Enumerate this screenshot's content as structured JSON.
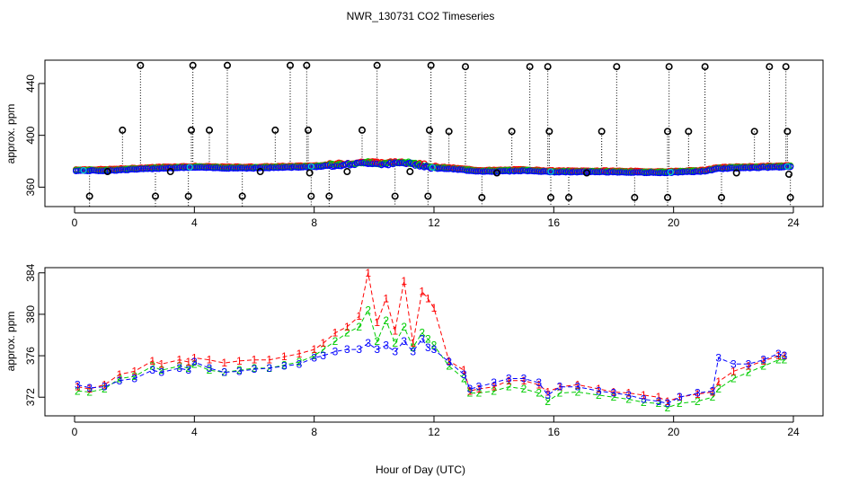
{
  "title": "NWR_130731  CO2 Timeseries",
  "xlabel": "Hour of Day (UTC)",
  "colors": {
    "series1": "#ff0000",
    "series2": "#00cc00",
    "series3": "#0000ff",
    "flag": "#00cccc",
    "outlier": "#000000"
  },
  "chart_data": [
    {
      "type": "scatter",
      "panel": "top",
      "ylabel": "approx. ppm",
      "xlim": [
        0,
        24
      ],
      "ylim": [
        345,
        458
      ],
      "x_ticks": [
        "0",
        "4",
        "8",
        "12",
        "16",
        "20",
        "24"
      ],
      "y_ticks": [
        "360",
        "400",
        "440"
      ],
      "baseline": {
        "x": [
          0,
          1,
          2,
          3,
          4,
          5,
          6,
          7,
          8,
          8.6,
          9.2,
          9.8,
          10.4,
          11,
          11.6,
          12,
          12.5,
          13,
          13.5,
          14,
          15,
          16,
          17,
          18,
          19,
          19.8,
          20.3,
          21,
          21.5,
          22,
          23,
          23.8
        ],
        "y": [
          373,
          373,
          374,
          375,
          375.5,
          375,
          375,
          375.5,
          376,
          377,
          378,
          379,
          378,
          379,
          377,
          375,
          374.5,
          373.5,
          372.5,
          372.5,
          373,
          372,
          372,
          372,
          371.5,
          371.5,
          372,
          372.5,
          374.5,
          375,
          375.5,
          376
        ]
      },
      "outliers_high": [
        {
          "x": 1.6,
          "y": 404
        },
        {
          "x": 2.2,
          "y": 454
        },
        {
          "x": 3.9,
          "y": 404
        },
        {
          "x": 3.95,
          "y": 454
        },
        {
          "x": 4.5,
          "y": 404
        },
        {
          "x": 5.1,
          "y": 454
        },
        {
          "x": 6.7,
          "y": 404
        },
        {
          "x": 7.2,
          "y": 454
        },
        {
          "x": 7.8,
          "y": 404
        },
        {
          "x": 7.75,
          "y": 454
        },
        {
          "x": 9.6,
          "y": 404
        },
        {
          "x": 10.1,
          "y": 454
        },
        {
          "x": 11.85,
          "y": 404
        },
        {
          "x": 11.9,
          "y": 454
        },
        {
          "x": 12.5,
          "y": 403
        },
        {
          "x": 13.05,
          "y": 453
        },
        {
          "x": 14.6,
          "y": 403
        },
        {
          "x": 15.2,
          "y": 453
        },
        {
          "x": 15.8,
          "y": 453
        },
        {
          "x": 15.85,
          "y": 403
        },
        {
          "x": 17.6,
          "y": 403
        },
        {
          "x": 18.1,
          "y": 453
        },
        {
          "x": 19.8,
          "y": 403
        },
        {
          "x": 19.85,
          "y": 453
        },
        {
          "x": 20.5,
          "y": 403
        },
        {
          "x": 21.05,
          "y": 453
        },
        {
          "x": 22.7,
          "y": 403
        },
        {
          "x": 23.2,
          "y": 453
        },
        {
          "x": 23.75,
          "y": 453
        },
        {
          "x": 23.8,
          "y": 403
        }
      ],
      "outliers_low": [
        {
          "x": 0.5,
          "y": 353
        },
        {
          "x": 2.7,
          "y": 353
        },
        {
          "x": 3.8,
          "y": 353
        },
        {
          "x": 5.6,
          "y": 353
        },
        {
          "x": 7.9,
          "y": 353
        },
        {
          "x": 8.5,
          "y": 353
        },
        {
          "x": 10.7,
          "y": 353
        },
        {
          "x": 11.8,
          "y": 353
        },
        {
          "x": 13.6,
          "y": 352
        },
        {
          "x": 15.9,
          "y": 352
        },
        {
          "x": 16.5,
          "y": 352
        },
        {
          "x": 18.7,
          "y": 352
        },
        {
          "x": 19.8,
          "y": 352
        },
        {
          "x": 21.6,
          "y": 352
        },
        {
          "x": 23.9,
          "y": 352
        }
      ],
      "outliers_mid": [
        {
          "x": 1.1,
          "y": 372
        },
        {
          "x": 3.2,
          "y": 372
        },
        {
          "x": 6.2,
          "y": 372
        },
        {
          "x": 7.85,
          "y": 371
        },
        {
          "x": 9.1,
          "y": 372
        },
        {
          "x": 11.2,
          "y": 372
        },
        {
          "x": 14.1,
          "y": 371
        },
        {
          "x": 17.1,
          "y": 371
        },
        {
          "x": 22.1,
          "y": 371
        },
        {
          "x": 23.85,
          "y": 370
        }
      ]
    },
    {
      "type": "line",
      "panel": "bottom",
      "ylabel": "approx. ppm",
      "xlim": [
        0,
        24
      ],
      "ylim": [
        370.2,
        384.5
      ],
      "x_ticks": [
        "0",
        "4",
        "8",
        "12",
        "16",
        "20",
        "24"
      ],
      "y_ticks": [
        "372",
        "376",
        "380",
        "384"
      ],
      "series": [
        {
          "name": "1",
          "x": [
            0.1,
            0.5,
            1,
            1.5,
            2,
            2.6,
            2.9,
            3.5,
            3.8,
            4,
            4.5,
            5,
            5.5,
            6,
            6.5,
            7,
            7.5,
            8,
            8.3,
            8.7,
            9.1,
            9.5,
            9.8,
            10.1,
            10.4,
            10.7,
            11,
            11.3,
            11.6,
            11.8,
            12,
            12.5,
            13,
            13.2,
            13.5,
            14,
            14.5,
            15,
            15.5,
            15.8,
            16.2,
            16.8,
            17.5,
            18,
            18.5,
            19,
            19.5,
            19.8,
            20.2,
            20.8,
            21.3,
            21.5,
            22,
            22.5,
            23,
            23.5,
            23.7
          ],
          "values": [
            373,
            372.8,
            373.2,
            374.2,
            374.5,
            375.5,
            375.2,
            375.6,
            375.4,
            375.8,
            375.6,
            375.3,
            375.5,
            375.6,
            375.6,
            375.9,
            376.2,
            376.6,
            377.2,
            378.2,
            378.8,
            379.8,
            384,
            379.2,
            381.5,
            378.4,
            383.2,
            377.2,
            382.2,
            381.5,
            380.6,
            375.5,
            374.6,
            372.6,
            372.8,
            373,
            373.6,
            373.6,
            373.2,
            372.5,
            373,
            373.2,
            372.8,
            372.5,
            372.4,
            372.2,
            372.0,
            371.6,
            372.0,
            372.3,
            372.5,
            373.5,
            374.5,
            375,
            375.5,
            376,
            376
          ]
        },
        {
          "name": "2",
          "x": [
            0.1,
            0.5,
            1,
            1.5,
            2,
            2.6,
            2.9,
            3.5,
            3.8,
            4,
            4.5,
            5,
            5.5,
            6,
            6.5,
            7,
            7.5,
            8,
            8.3,
            8.7,
            9.1,
            9.5,
            9.8,
            10.1,
            10.4,
            10.7,
            11,
            11.3,
            11.6,
            11.8,
            12,
            12.5,
            13,
            13.2,
            13.5,
            14,
            14.5,
            15,
            15.5,
            15.8,
            16.2,
            16.8,
            17.5,
            18,
            18.5,
            19,
            19.5,
            19.8,
            20.2,
            20.8,
            21.3,
            21.5,
            22,
            22.5,
            23,
            23.5,
            23.7
          ],
          "values": [
            372.6,
            372.5,
            372.8,
            373.8,
            374.0,
            375.0,
            374.6,
            375.0,
            374.8,
            375.2,
            374.6,
            374.4,
            374.6,
            374.8,
            374.8,
            375.1,
            375.4,
            376.0,
            376.6,
            377.4,
            378.2,
            378.8,
            380.4,
            377.4,
            379.4,
            377.2,
            378.8,
            376.8,
            378.2,
            377.6,
            377.0,
            375.0,
            373.8,
            372.4,
            372.4,
            372.6,
            373.0,
            372.8,
            372.4,
            371.6,
            372.4,
            372.5,
            372.2,
            372.0,
            371.8,
            371.5,
            371.4,
            371.0,
            371.4,
            371.6,
            372.0,
            372.8,
            373.8,
            374.4,
            375.0,
            375.6,
            375.6
          ]
        },
        {
          "name": "3",
          "x": [
            0.1,
            0.5,
            1,
            1.5,
            2,
            2.6,
            2.9,
            3.5,
            3.8,
            4,
            4.5,
            5,
            5.5,
            6,
            6.5,
            7,
            7.5,
            8,
            8.3,
            8.7,
            9.1,
            9.5,
            9.8,
            10.1,
            10.4,
            10.7,
            11,
            11.3,
            11.6,
            11.8,
            12,
            12.5,
            13,
            13.2,
            13.5,
            14,
            14.5,
            15,
            15.5,
            15.8,
            16.2,
            16.8,
            17.5,
            18,
            18.5,
            19,
            19.5,
            19.8,
            20.2,
            20.8,
            21.3,
            21.5,
            22,
            22.5,
            23,
            23.5,
            23.7
          ],
          "values": [
            373.2,
            372.9,
            373.0,
            373.6,
            373.8,
            374.6,
            374.4,
            374.8,
            374.6,
            375.4,
            374.8,
            374.4,
            374.5,
            374.7,
            374.8,
            375.0,
            375.2,
            375.8,
            376.0,
            376.4,
            376.6,
            376.6,
            377.2,
            376.6,
            377.0,
            376.4,
            377.4,
            376.4,
            377.6,
            376.8,
            376.6,
            375.4,
            374.2,
            372.8,
            373.0,
            373.4,
            373.8,
            373.8,
            373.4,
            372.2,
            373.0,
            373.0,
            372.6,
            372.4,
            372.2,
            371.8,
            371.6,
            371.4,
            372.0,
            372.4,
            372.6,
            375.8,
            375.2,
            375.2,
            375.6,
            376.2,
            376.0
          ]
        }
      ]
    }
  ]
}
